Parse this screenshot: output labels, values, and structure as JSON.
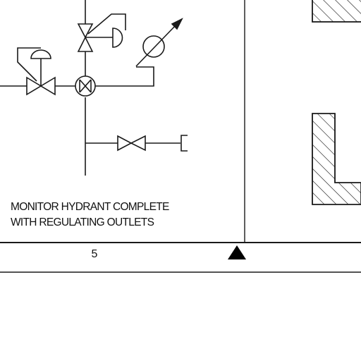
{
  "caption": {
    "line1": "MONITOR HYDRANT COMPLETE",
    "line2": "WITH REGULATING OUTLETS"
  },
  "footer": {
    "sheet_number": "5"
  },
  "symbols": {
    "north-arrow": "filled-triangle",
    "valves": [
      "diaphragm-actuated-valve",
      "regulating-valve",
      "gate-valve",
      "pressure-gauge",
      "monitor-head"
    ],
    "wall-hatch": "diagonal-hatching"
  },
  "colors": {
    "line": "#1a1a1a",
    "background": "#ffffff"
  }
}
